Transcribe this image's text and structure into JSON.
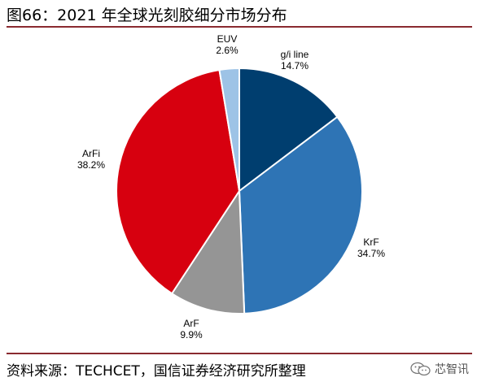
{
  "figure": {
    "title": "图66：2021 年全球光刻胶细分市场分布",
    "source": "资料来源：TECHCET，国信证券经济研究所整理",
    "watermark": "芯智讯",
    "watermark_icon": "wechat-icon"
  },
  "chart_data": {
    "type": "pie",
    "title": "",
    "start_angle_deg": 0,
    "direction": "clockwise",
    "slices": [
      {
        "label": "g/i line",
        "value": 14.7,
        "value_label": "14.7%",
        "color": "#003e6f"
      },
      {
        "label": "KrF",
        "value": 34.7,
        "value_label": "34.7%",
        "color": "#2e74b5"
      },
      {
        "label": "ArF",
        "value": 9.9,
        "value_label": "9.9%",
        "color": "#959595"
      },
      {
        "label": "ArFi",
        "value": 38.2,
        "value_label": "38.2%",
        "color": "#d7000f"
      },
      {
        "label": "EUV",
        "value": 2.6,
        "value_label": "2.6%",
        "color": "#9dc3e6"
      }
    ]
  }
}
